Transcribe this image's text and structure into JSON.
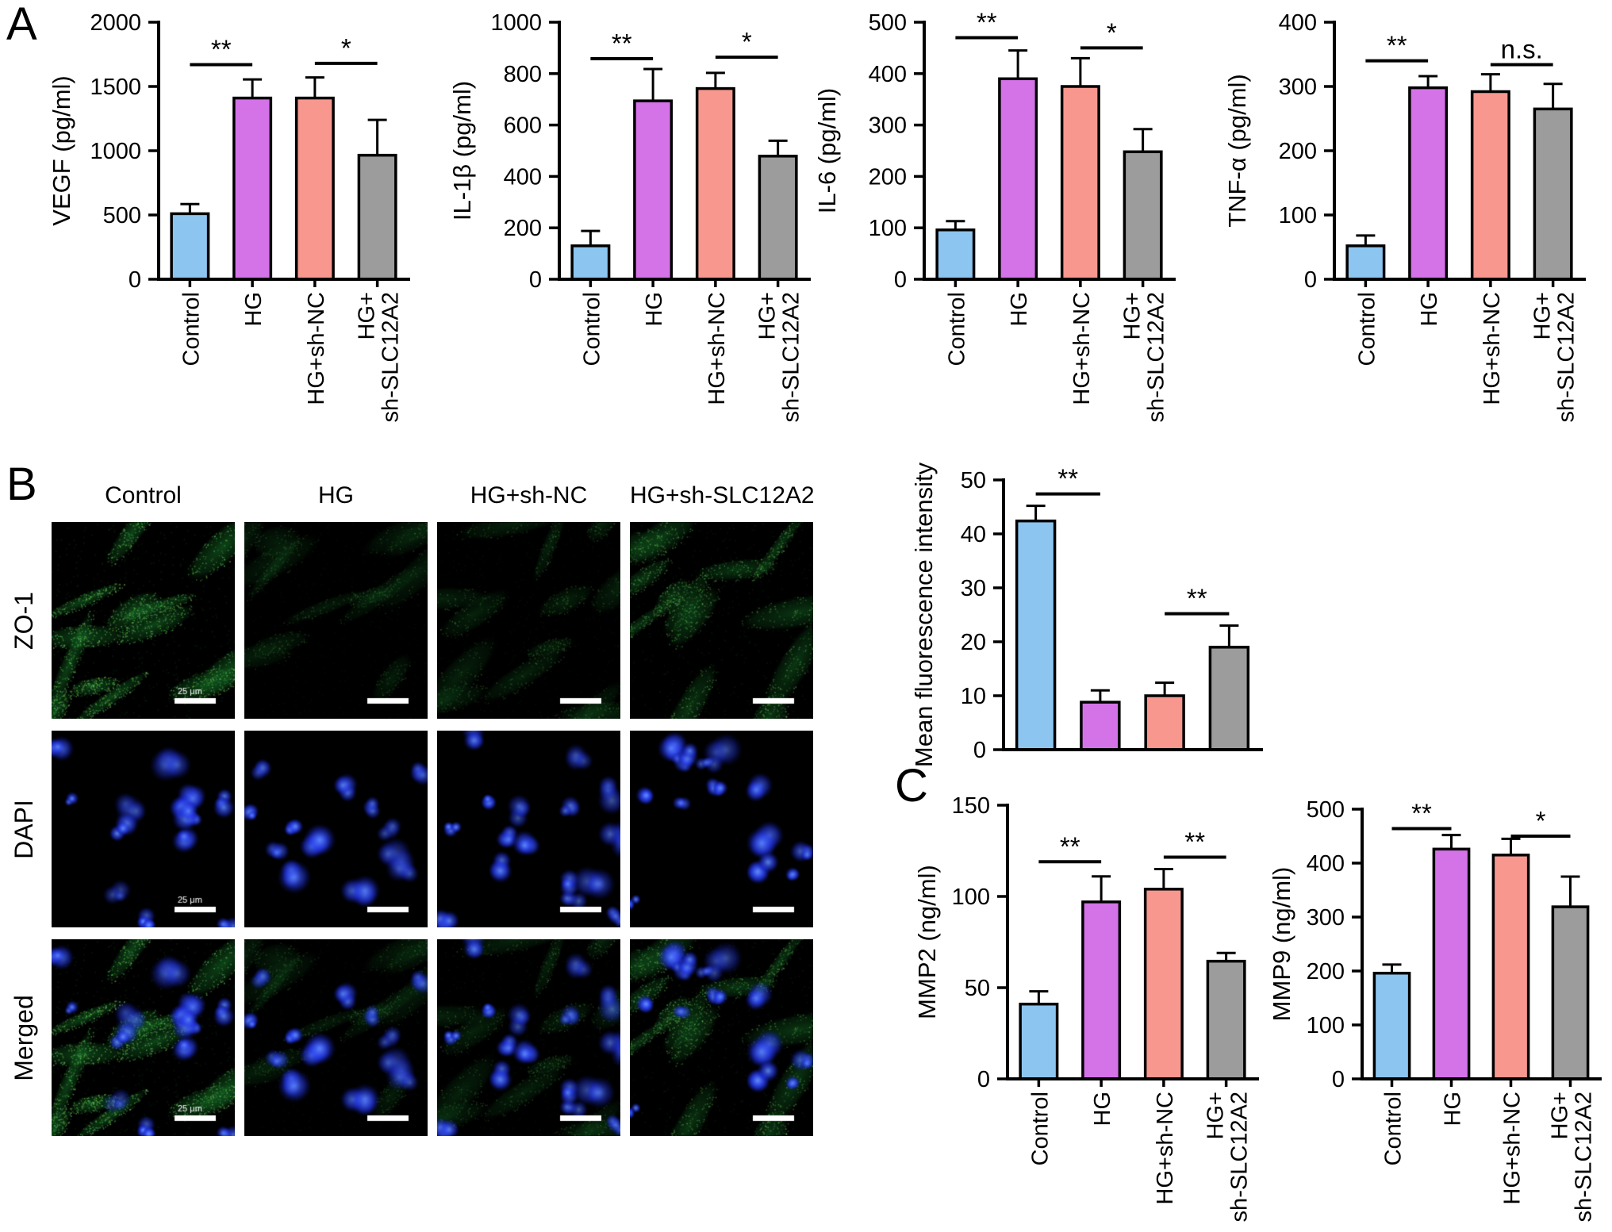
{
  "panel_a": {
    "label": "A"
  },
  "panel_b": {
    "label": "B",
    "column_labels": [
      "Control",
      "HG",
      "HG+sh-NC",
      "HG+sh-SLC12A2"
    ],
    "row_labels": [
      "ZO-1",
      "DAPI",
      "Merged"
    ],
    "scale_bar_label": "25 μm",
    "scale_label_columns": [
      0
    ],
    "green_intensity": [
      1.0,
      0.42,
      0.5,
      0.8
    ],
    "stain_colors": {
      "zo1": "#21d04b",
      "dapi": "#2a3cff"
    }
  },
  "panel_c": {
    "label": "C"
  },
  "bar_colors": [
    "#8CC5F0",
    "#D472E8",
    "#F8978E",
    "#9C9C9C"
  ],
  "categories": [
    "Control",
    "HG",
    "HG+sh-NC",
    "HG+sh-SLC12A2"
  ],
  "category_lines": [
    [
      "Control"
    ],
    [
      "HG"
    ],
    [
      "HG+sh-NC"
    ],
    [
      "HG+",
      "sh-SLC12A2"
    ]
  ],
  "chart_data": [
    {
      "id": "vegf",
      "type": "bar",
      "ylabel": "VEGF (pg/ml)",
      "ylim": [
        0,
        2000
      ],
      "yticks": [
        0,
        500,
        1000,
        1500,
        2000
      ],
      "values": [
        510,
        1410,
        1410,
        965
      ],
      "errors_upper": [
        585,
        1555,
        1570,
        1240
      ],
      "significance": [
        {
          "pair": [
            0,
            1
          ],
          "label": "**",
          "y": 1670
        },
        {
          "pair": [
            2,
            3
          ],
          "label": "*",
          "y": 1680
        }
      ],
      "show_categories": true
    },
    {
      "id": "il1b",
      "type": "bar",
      "ylabel": "IL-1β (pg/ml)",
      "ylim": [
        0,
        1000
      ],
      "yticks": [
        0,
        200,
        400,
        600,
        800,
        1000
      ],
      "values": [
        130,
        694,
        742,
        479
      ],
      "errors_upper": [
        188,
        818,
        803,
        539
      ],
      "significance": [
        {
          "pair": [
            0,
            1
          ],
          "label": "**",
          "y": 858
        },
        {
          "pair": [
            2,
            3
          ],
          "label": "*",
          "y": 864
        }
      ],
      "show_categories": true
    },
    {
      "id": "il6",
      "type": "bar",
      "ylabel": "IL-6 (pg/ml)",
      "ylim": [
        0,
        500
      ],
      "yticks": [
        0,
        100,
        200,
        300,
        400,
        500
      ],
      "values": [
        96,
        390,
        375,
        248
      ],
      "errors_upper": [
        113,
        445,
        430,
        292
      ],
      "significance": [
        {
          "pair": [
            0,
            1
          ],
          "label": "**",
          "y": 470
        },
        {
          "pair": [
            2,
            3
          ],
          "label": "*",
          "y": 450
        }
      ],
      "show_categories": true
    },
    {
      "id": "tnfa",
      "type": "bar",
      "ylabel": "TNF-α (pg/ml)",
      "ylim": [
        0,
        400
      ],
      "yticks": [
        0,
        100,
        200,
        300,
        400
      ],
      "values": [
        52,
        298,
        292,
        265
      ],
      "errors_upper": [
        68,
        316,
        319,
        304
      ],
      "significance": [
        {
          "pair": [
            0,
            1
          ],
          "label": "**",
          "y": 340
        },
        {
          "pair": [
            2,
            3
          ],
          "label": "n.s.",
          "y": 334
        }
      ],
      "show_categories": true
    },
    {
      "id": "mfi",
      "type": "bar",
      "ylabel": "Mean fluorescence intensity",
      "ylim": [
        0,
        50
      ],
      "yticks": [
        0,
        10,
        20,
        30,
        40,
        50
      ],
      "values": [
        42.4,
        8.8,
        10,
        19
      ],
      "errors_upper": [
        45.2,
        11,
        12.4,
        23
      ],
      "significance": [
        {
          "pair": [
            0,
            1
          ],
          "label": "**",
          "y": 47.4
        },
        {
          "pair": [
            2,
            3
          ],
          "label": "**",
          "y": 25.2
        }
      ],
      "show_categories": false
    },
    {
      "id": "mmp2",
      "type": "bar",
      "ylabel": "MMP2 (ng/ml)",
      "ylim": [
        0,
        150
      ],
      "yticks": [
        0,
        50,
        100,
        150
      ],
      "values": [
        41,
        97,
        104,
        64.5
      ],
      "errors_upper": [
        48,
        111,
        115,
        69
      ],
      "significance": [
        {
          "pair": [
            0,
            1
          ],
          "label": "**",
          "y": 119
        },
        {
          "pair": [
            2,
            3
          ],
          "label": "**",
          "y": 121.5
        }
      ],
      "show_categories": true
    },
    {
      "id": "mmp9",
      "type": "bar",
      "ylabel": "MMP9 (ng/ml)",
      "ylim": [
        0,
        500
      ],
      "yticks": [
        0,
        100,
        200,
        300,
        400,
        500
      ],
      "values": [
        196,
        426,
        415,
        319
      ],
      "errors_upper": [
        212,
        452,
        445,
        375
      ],
      "significance": [
        {
          "pair": [
            0,
            1
          ],
          "label": "**",
          "y": 464
        },
        {
          "pair": [
            2,
            3
          ],
          "label": "*",
          "y": 450
        }
      ],
      "show_categories": true
    }
  ]
}
